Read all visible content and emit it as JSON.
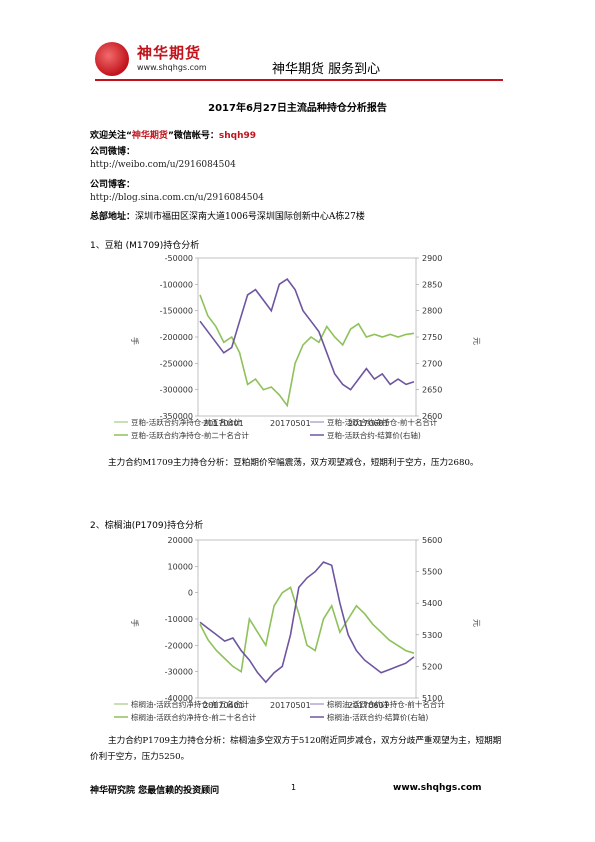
{
  "header": {
    "logo_cn": "神华期货",
    "logo_url": "www.shqhgs.com",
    "slogan": "神华期货   服务到心"
  },
  "title": "2017年6月27日主流品种持仓分析报告",
  "intro": {
    "welcome_prefix": "欢迎关注“",
    "welcome_brand": "神华期货",
    "welcome_mid": "”微信帐号：",
    "welcome_account": "shqh99",
    "weibo_label": "公司微博：",
    "weibo_url": "http://weibo.com/u/2916084504",
    "blog_label": "公司博客：",
    "blog_url": "http://blog.sina.com.cn/u/2916084504",
    "address_label": "总部地址：",
    "address": "深圳市福田区深南大道1006号深圳国际创新中心A栋27楼"
  },
  "sections": [
    {
      "heading": "1、豆粕 (M1709)持仓分析",
      "analysis": "主力合约M1709主力持仓分析：豆粕期价窄幅震荡，双方观望减仓，短期利于空方，压力2680。"
    },
    {
      "heading": "2、棕榈油(P1709)持仓分析",
      "analysis": "主力合约P1709主力持仓分析：棕榈油多空双方于5120附近同步减仓，双方分歧严重观望为主，短期期价利于空方，压力5250。"
    }
  ],
  "chart_data": [
    {
      "type": "line",
      "x_ticks": [
        "20170401",
        "20170501",
        "20170601"
      ],
      "ylabel_left": "手",
      "ylabel_right": "元",
      "y_left_ticks": [
        -50000,
        -100000,
        -150000,
        -200000,
        -250000,
        -300000,
        -350000
      ],
      "y_left_range": [
        -350000,
        -50000
      ],
      "y_right_ticks": [
        2900,
        2850,
        2800,
        2750,
        2700,
        2650,
        2600
      ],
      "y_right_range": [
        2600,
        2900
      ],
      "legend": [
        "豆粕-活跃合约净持仓-前五名合计",
        "豆粕-活跃合约净持仓-前十名合计",
        "豆粕-活跃合约净持仓-前二十名合计",
        "豆粕-活跃合约-结算价(右轴)"
      ],
      "legend_colors": [
        "#b7d59a",
        "#b4a8cf",
        "#8fc15b",
        "#6e55a0"
      ],
      "series": [
        {
          "name": "豆粕-活跃合约净持仓-前二十名合计",
          "axis": "left",
          "color": "#8fc15b",
          "values": [
            -120000,
            -160000,
            -180000,
            -210000,
            -200000,
            -230000,
            -290000,
            -280000,
            -300000,
            -295000,
            -310000,
            -330000,
            -250000,
            -215000,
            -200000,
            -210000,
            -180000,
            -200000,
            -215000,
            -185000,
            -175000,
            -200000,
            -195000,
            -200000,
            -195000,
            -200000,
            -195000,
            -193000
          ]
        },
        {
          "name": "豆粕-活跃合约-结算价(右轴)",
          "axis": "right",
          "color": "#6e55a0",
          "values": [
            2780,
            2760,
            2740,
            2720,
            2730,
            2780,
            2830,
            2840,
            2820,
            2800,
            2850,
            2860,
            2840,
            2800,
            2780,
            2760,
            2720,
            2680,
            2660,
            2650,
            2670,
            2690,
            2670,
            2680,
            2660,
            2670,
            2660,
            2665
          ]
        }
      ]
    },
    {
      "type": "line",
      "x_ticks": [
        "20170401",
        "20170501",
        "20170601"
      ],
      "ylabel_left": "手",
      "ylabel_right": "元",
      "y_left_ticks": [
        20000,
        10000,
        0,
        -10000,
        -20000,
        -30000,
        -40000
      ],
      "y_left_range": [
        -40000,
        20000
      ],
      "y_right_ticks": [
        5600,
        5500,
        5400,
        5300,
        5200,
        5100
      ],
      "y_right_range": [
        5100,
        5600
      ],
      "legend": [
        "棕榈油-活跃合约净持仓-前五名合计",
        "棕榈油-活跃合约净持仓-前十名合计",
        "棕榈油-活跃合约净持仓-前二十名合计",
        "棕榈油-活跃合约-结算价(右轴)"
      ],
      "legend_colors": [
        "#b7d59a",
        "#b4a8cf",
        "#8fc15b",
        "#6e55a0"
      ],
      "series": [
        {
          "name": "棕榈油-活跃合约净持仓-前二十名合计",
          "axis": "left",
          "color": "#8fc15b",
          "values": [
            -12000,
            -18000,
            -22000,
            -25000,
            -28000,
            -30000,
            -10000,
            -15000,
            -20000,
            -5000,
            0,
            2000,
            -8000,
            -20000,
            -22000,
            -10000,
            -5000,
            -15000,
            -10000,
            -5000,
            -8000,
            -12000,
            -15000,
            -18000,
            -20000,
            -22000,
            -23000
          ]
        },
        {
          "name": "棕榈油-活跃合约-结算价(右轴)",
          "axis": "right",
          "color": "#6e55a0",
          "values": [
            5340,
            5320,
            5300,
            5280,
            5290,
            5250,
            5220,
            5180,
            5150,
            5180,
            5200,
            5300,
            5450,
            5480,
            5500,
            5530,
            5520,
            5400,
            5300,
            5250,
            5220,
            5200,
            5180,
            5190,
            5200,
            5210,
            5230
          ]
        }
      ]
    }
  ],
  "footer": {
    "left": "神华研究院   您最信赖的投资顾问",
    "page": "1",
    "right": "www.shqhgs.com"
  }
}
